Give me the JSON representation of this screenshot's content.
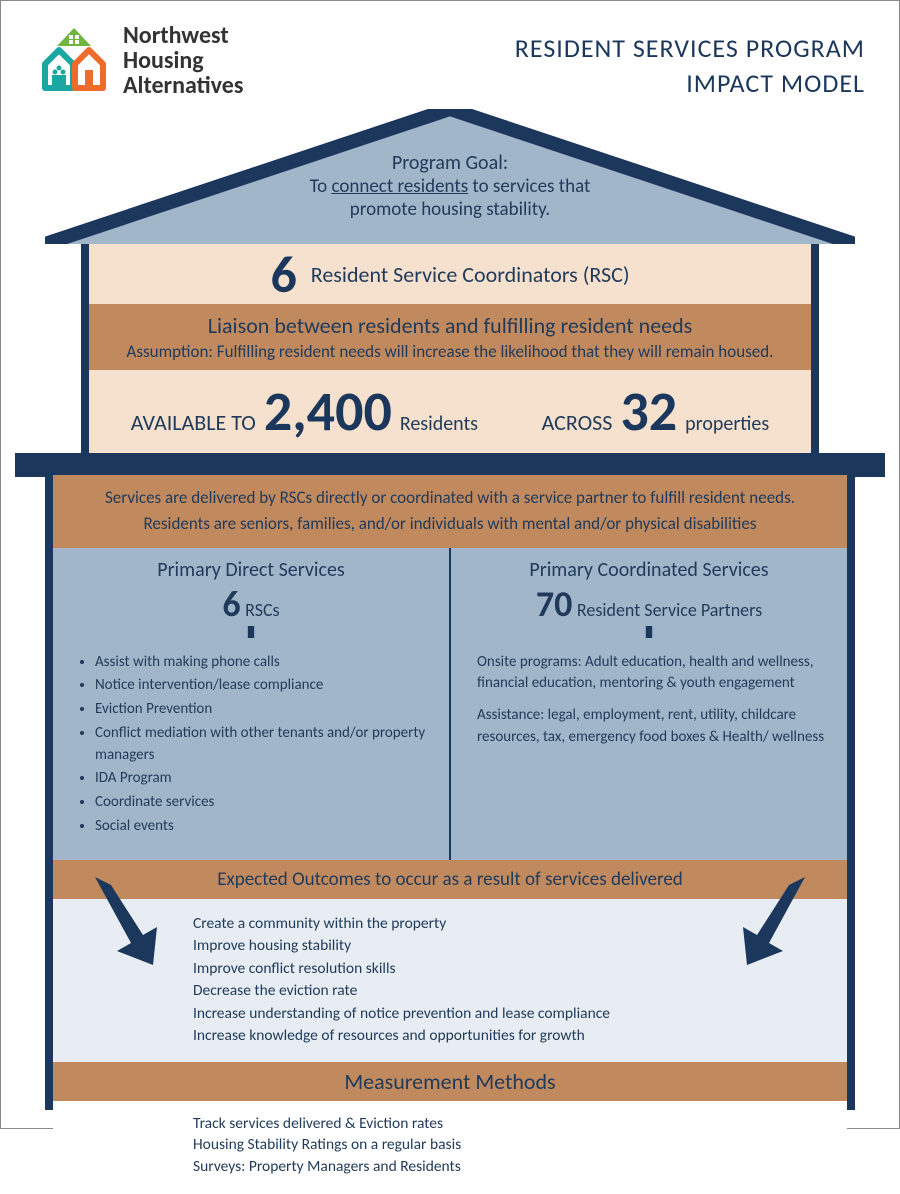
{
  "colors": {
    "navy": "#1c375c",
    "slate": "#a2b6c9",
    "peach": "#f5e1ce",
    "tan": "#c1895e",
    "lightblue": "#e7edf2",
    "logo_green": "#6fb53f",
    "logo_orange": "#ef6b2c",
    "logo_teal": "#1aa7a2"
  },
  "logo": {
    "line1": "Northwest",
    "line2": "Housing",
    "line3": "Alternatives"
  },
  "title": {
    "line1": "RESIDENT SERVICES PROGRAM",
    "line2": "IMPACT MODEL"
  },
  "goal": {
    "heading": "Program Goal:",
    "pre": "To ",
    "underlined": "connect residents",
    "post": " to services that",
    "line3": "promote housing stability."
  },
  "rsc_row": {
    "number": "6",
    "label": "Resident Service Coordinators (RSC)"
  },
  "liaison": {
    "main": "Liaison between residents and fulfilling resident needs",
    "sub": "Assumption: Fulfilling resident needs will increase the likelihood that they will remain housed."
  },
  "availability": {
    "lbl1": "AVAILABLE TO",
    "num1": "2,400",
    "sub1": "Residents",
    "lbl2": "ACROSS",
    "num2": "32",
    "sub2": "properties"
  },
  "intro": {
    "line1": "Services are delivered by RSCs directly or coordinated with a service partner to fulfill resident needs.",
    "line2": "Residents are seniors, families, and/or individuals with mental and/or physical disabilities"
  },
  "direct": {
    "title": "Primary Direct Services",
    "num": "6",
    "sub": "RSCs",
    "items": [
      "Assist with making phone calls",
      "Notice intervention/lease compliance",
      "Eviction Prevention",
      "Conflict mediation with other tenants and/or property managers",
      "IDA Program",
      "Coordinate services",
      "Social events"
    ]
  },
  "coord": {
    "title": "Primary Coordinated Services",
    "num": "70",
    "sub": "Resident Service Partners",
    "p1": "Onsite programs: Adult education, health and wellness, financial education, mentoring & youth engagement",
    "p2": "Assistance: legal, employment, rent, utility, childcare resources, tax, emergency food boxes & Health/ wellness"
  },
  "outcomes": {
    "heading": "Expected Outcomes to occur as a result of services delivered",
    "items": [
      "Create a community within the property",
      "Improve housing stability",
      "Improve conflict resolution skills",
      "Decrease the eviction rate",
      "Increase understanding of notice prevention and lease compliance",
      "Increase knowledge of resources and opportunities for growth"
    ]
  },
  "measurement": {
    "heading": "Measurement Methods",
    "items": [
      "Track services delivered & Eviction rates",
      "Housing Stability Ratings on a regular basis",
      "Surveys: Property Managers and Residents"
    ]
  }
}
